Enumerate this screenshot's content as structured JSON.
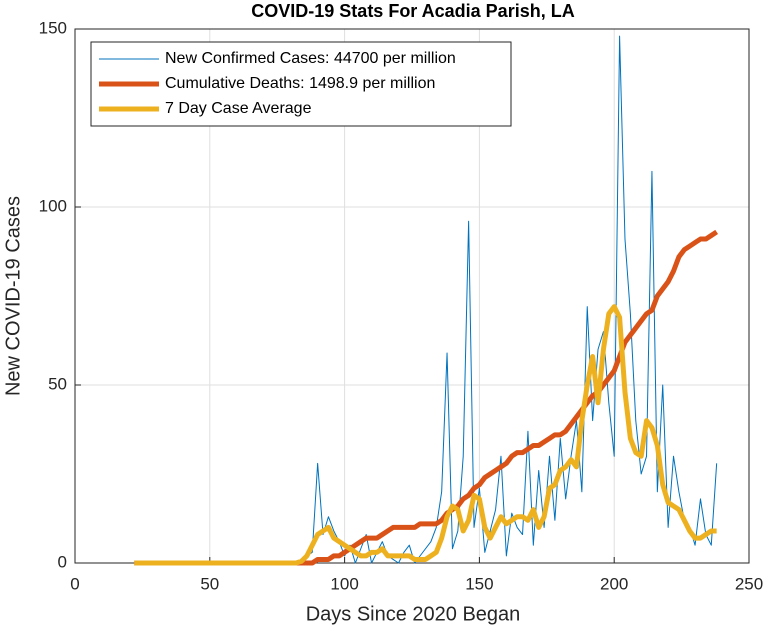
{
  "chart_data": {
    "type": "line",
    "title": "COVID-19 Stats For Acadia Parish, LA",
    "x_label": "Days Since 2020 Began",
    "y_label": "New COVID-19 Cases",
    "xlim": [
      0,
      250
    ],
    "xticks": [
      0,
      50,
      100,
      150,
      200,
      250
    ],
    "ylim": [
      0,
      150
    ],
    "yticks": [
      0,
      50,
      100,
      150
    ],
    "grid": true,
    "legend": "top-left",
    "x": [
      22,
      24,
      26,
      28,
      30,
      32,
      34,
      36,
      38,
      40,
      42,
      44,
      46,
      48,
      50,
      52,
      54,
      56,
      58,
      60,
      62,
      64,
      66,
      68,
      70,
      72,
      74,
      76,
      78,
      80,
      82,
      84,
      86,
      88,
      90,
      92,
      94,
      96,
      98,
      100,
      102,
      104,
      106,
      108,
      110,
      112,
      114,
      116,
      118,
      120,
      122,
      124,
      126,
      128,
      130,
      132,
      134,
      136,
      138,
      140,
      142,
      144,
      146,
      148,
      150,
      152,
      154,
      156,
      158,
      160,
      162,
      164,
      166,
      168,
      170,
      172,
      174,
      176,
      178,
      180,
      182,
      184,
      186,
      188,
      190,
      192,
      194,
      196,
      198,
      200,
      202,
      204,
      206,
      208,
      210,
      212,
      214,
      216,
      218,
      220,
      222,
      224,
      226,
      228,
      230,
      232,
      234,
      236,
      238
    ],
    "series": [
      {
        "name": "New Confirmed Cases: 44700 per million",
        "color": "#0072bd",
        "width": 1,
        "values": [
          0,
          0,
          0,
          0,
          0,
          0,
          0,
          0,
          0,
          0,
          0,
          0,
          0,
          0,
          0,
          0,
          0,
          0,
          0,
          0,
          0,
          0,
          0,
          0,
          0,
          0,
          0,
          0,
          0,
          0,
          0,
          1,
          2,
          3,
          28,
          8,
          13,
          9,
          6,
          2,
          5,
          0,
          4,
          8,
          0,
          3,
          6,
          2,
          1,
          0,
          3,
          5,
          0,
          2,
          4,
          6,
          10,
          20,
          59,
          4,
          9,
          30,
          96,
          10,
          21,
          3,
          9,
          15,
          30,
          2,
          14,
          10,
          8,
          37,
          5,
          26,
          10,
          30,
          12,
          35,
          18,
          30,
          40,
          20,
          72,
          40,
          60,
          65,
          45,
          30,
          148,
          91,
          70,
          40,
          25,
          30,
          110,
          20,
          50,
          10,
          30,
          20,
          12,
          10,
          5,
          18,
          8,
          5,
          28
        ]
      },
      {
        "name": "Cumulative Deaths: 1498.9 per million",
        "color": "#d95319",
        "width": 5,
        "values": [
          0,
          0,
          0,
          0,
          0,
          0,
          0,
          0,
          0,
          0,
          0,
          0,
          0,
          0,
          0,
          0,
          0,
          0,
          0,
          0,
          0,
          0,
          0,
          0,
          0,
          0,
          0,
          0,
          0,
          0,
          0,
          0,
          0,
          0,
          1,
          1,
          1,
          2,
          2,
          3,
          4,
          5,
          6,
          7,
          7,
          7,
          8,
          9,
          10,
          10,
          10,
          10,
          10,
          11,
          11,
          11,
          11,
          12,
          14,
          15,
          16,
          18,
          19,
          21,
          22,
          24,
          25,
          26,
          27,
          28,
          30,
          31,
          31,
          32,
          33,
          33,
          34,
          35,
          36,
          36,
          37,
          39,
          41,
          43,
          45,
          47,
          48,
          50,
          52,
          54,
          58,
          62,
          64,
          66,
          68,
          70,
          71,
          75,
          77,
          79,
          82,
          86,
          88,
          89,
          90,
          91,
          91,
          92,
          93
        ]
      },
      {
        "name": "7 Day Case Average",
        "color": "#edb120",
        "width": 5,
        "values": [
          0,
          0,
          0,
          0,
          0,
          0,
          0,
          0,
          0,
          0,
          0,
          0,
          0,
          0,
          0,
          0,
          0,
          0,
          0,
          0,
          0,
          0,
          0,
          0,
          0,
          0,
          0,
          0,
          0,
          0,
          0,
          0.5,
          2,
          5,
          8,
          9,
          10,
          7,
          6,
          5,
          4,
          3,
          2,
          2,
          3,
          3,
          4,
          2,
          2,
          2,
          2,
          2,
          1,
          1,
          1,
          2,
          3,
          7,
          13,
          16,
          15,
          9,
          12,
          19,
          18,
          10,
          7,
          10,
          13,
          11,
          12,
          13,
          13,
          12,
          15,
          10,
          13,
          21,
          22,
          26,
          27,
          29,
          27,
          40,
          50,
          58,
          45,
          60,
          70,
          72,
          69,
          48,
          35,
          31,
          30,
          40,
          38,
          33,
          22,
          17,
          16,
          15,
          12,
          9,
          7,
          7,
          8,
          9,
          9
        ]
      }
    ]
  }
}
